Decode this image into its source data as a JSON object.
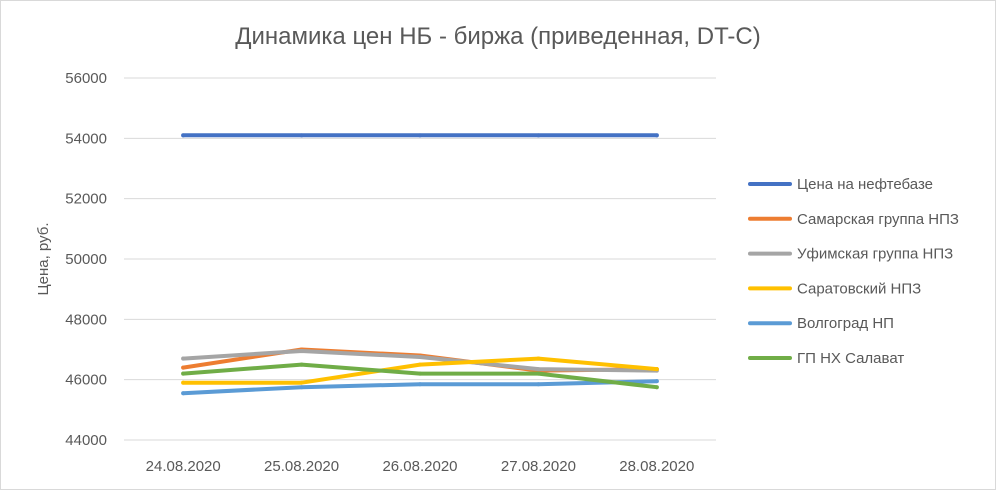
{
  "chart_data": {
    "type": "line",
    "title": "Динамика цен НБ - биржа (приведенная, DT-C)",
    "xlabel": "",
    "ylabel": "Цена, руб.",
    "categories": [
      "24.08.2020",
      "25.08.2020",
      "26.08.2020",
      "27.08.2020",
      "28.08.2020"
    ],
    "ylim": [
      44000,
      56000
    ],
    "yticks": [
      44000,
      46000,
      48000,
      50000,
      52000,
      54000,
      56000
    ],
    "grid": true,
    "legend_position": "right",
    "series": [
      {
        "name": "Цена на нефтебазе",
        "color": "#4472c4",
        "values": [
          54100,
          54100,
          54100,
          54100,
          54100
        ]
      },
      {
        "name": "Самарская группа НПЗ",
        "color": "#ed7d31",
        "values": [
          46400,
          47000,
          46800,
          46300,
          46350
        ]
      },
      {
        "name": "Уфимская группа НПЗ",
        "color": "#a5a5a5",
        "values": [
          46700,
          46950,
          46750,
          46350,
          46300
        ]
      },
      {
        "name": "Саратовский НПЗ",
        "color": "#ffc000",
        "values": [
          45900,
          45900,
          46500,
          46700,
          46350
        ]
      },
      {
        "name": "Волгоград НП",
        "color": "#5b9bd5",
        "values": [
          45550,
          45750,
          45850,
          45850,
          45950
        ]
      },
      {
        "name": "ГП НХ Салават",
        "color": "#70ad47",
        "values": [
          46200,
          46500,
          46200,
          46200,
          45750
        ]
      }
    ]
  }
}
